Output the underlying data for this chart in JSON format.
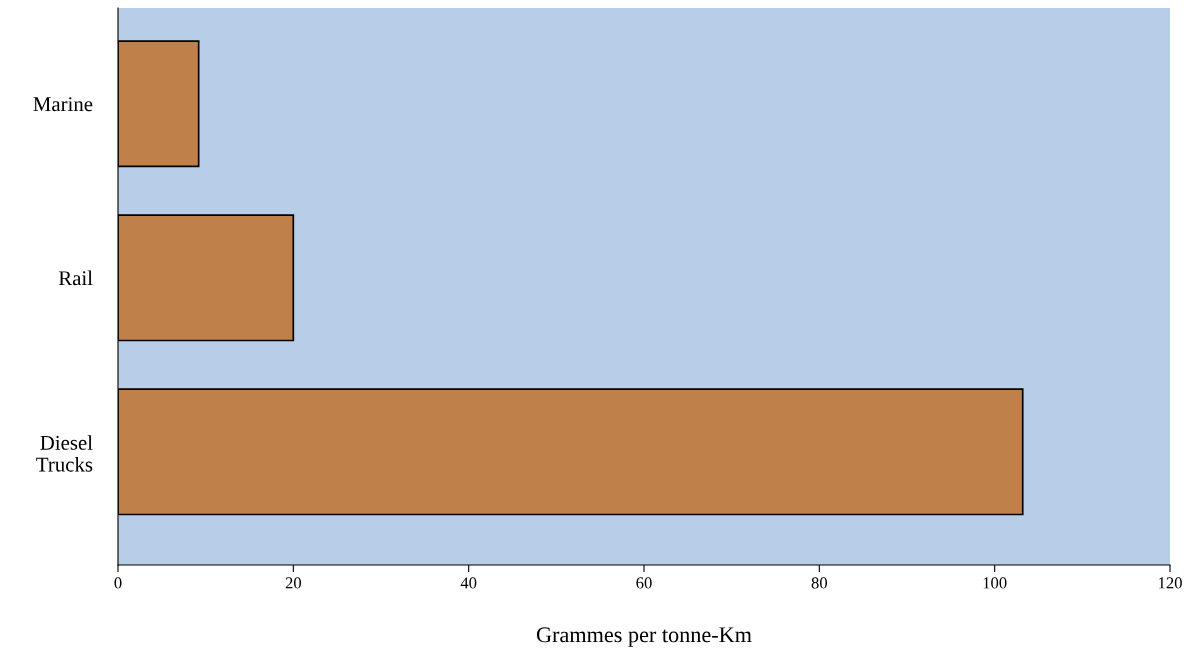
{
  "chart_data": {
    "type": "bar",
    "orientation": "horizontal",
    "xlabel": "Grammes per tonne-Km",
    "categories": [
      "Marine",
      "Rail",
      "Diesel\nTrucks"
    ],
    "series": [
      {
        "color": "#c0804a",
        "values": [
          9.2,
          20,
          103.2
        ]
      }
    ],
    "xlim": [
      0,
      120
    ],
    "xticks": [
      0,
      20,
      40,
      60,
      80,
      100,
      120
    ],
    "grid": false,
    "legend": false
  }
}
